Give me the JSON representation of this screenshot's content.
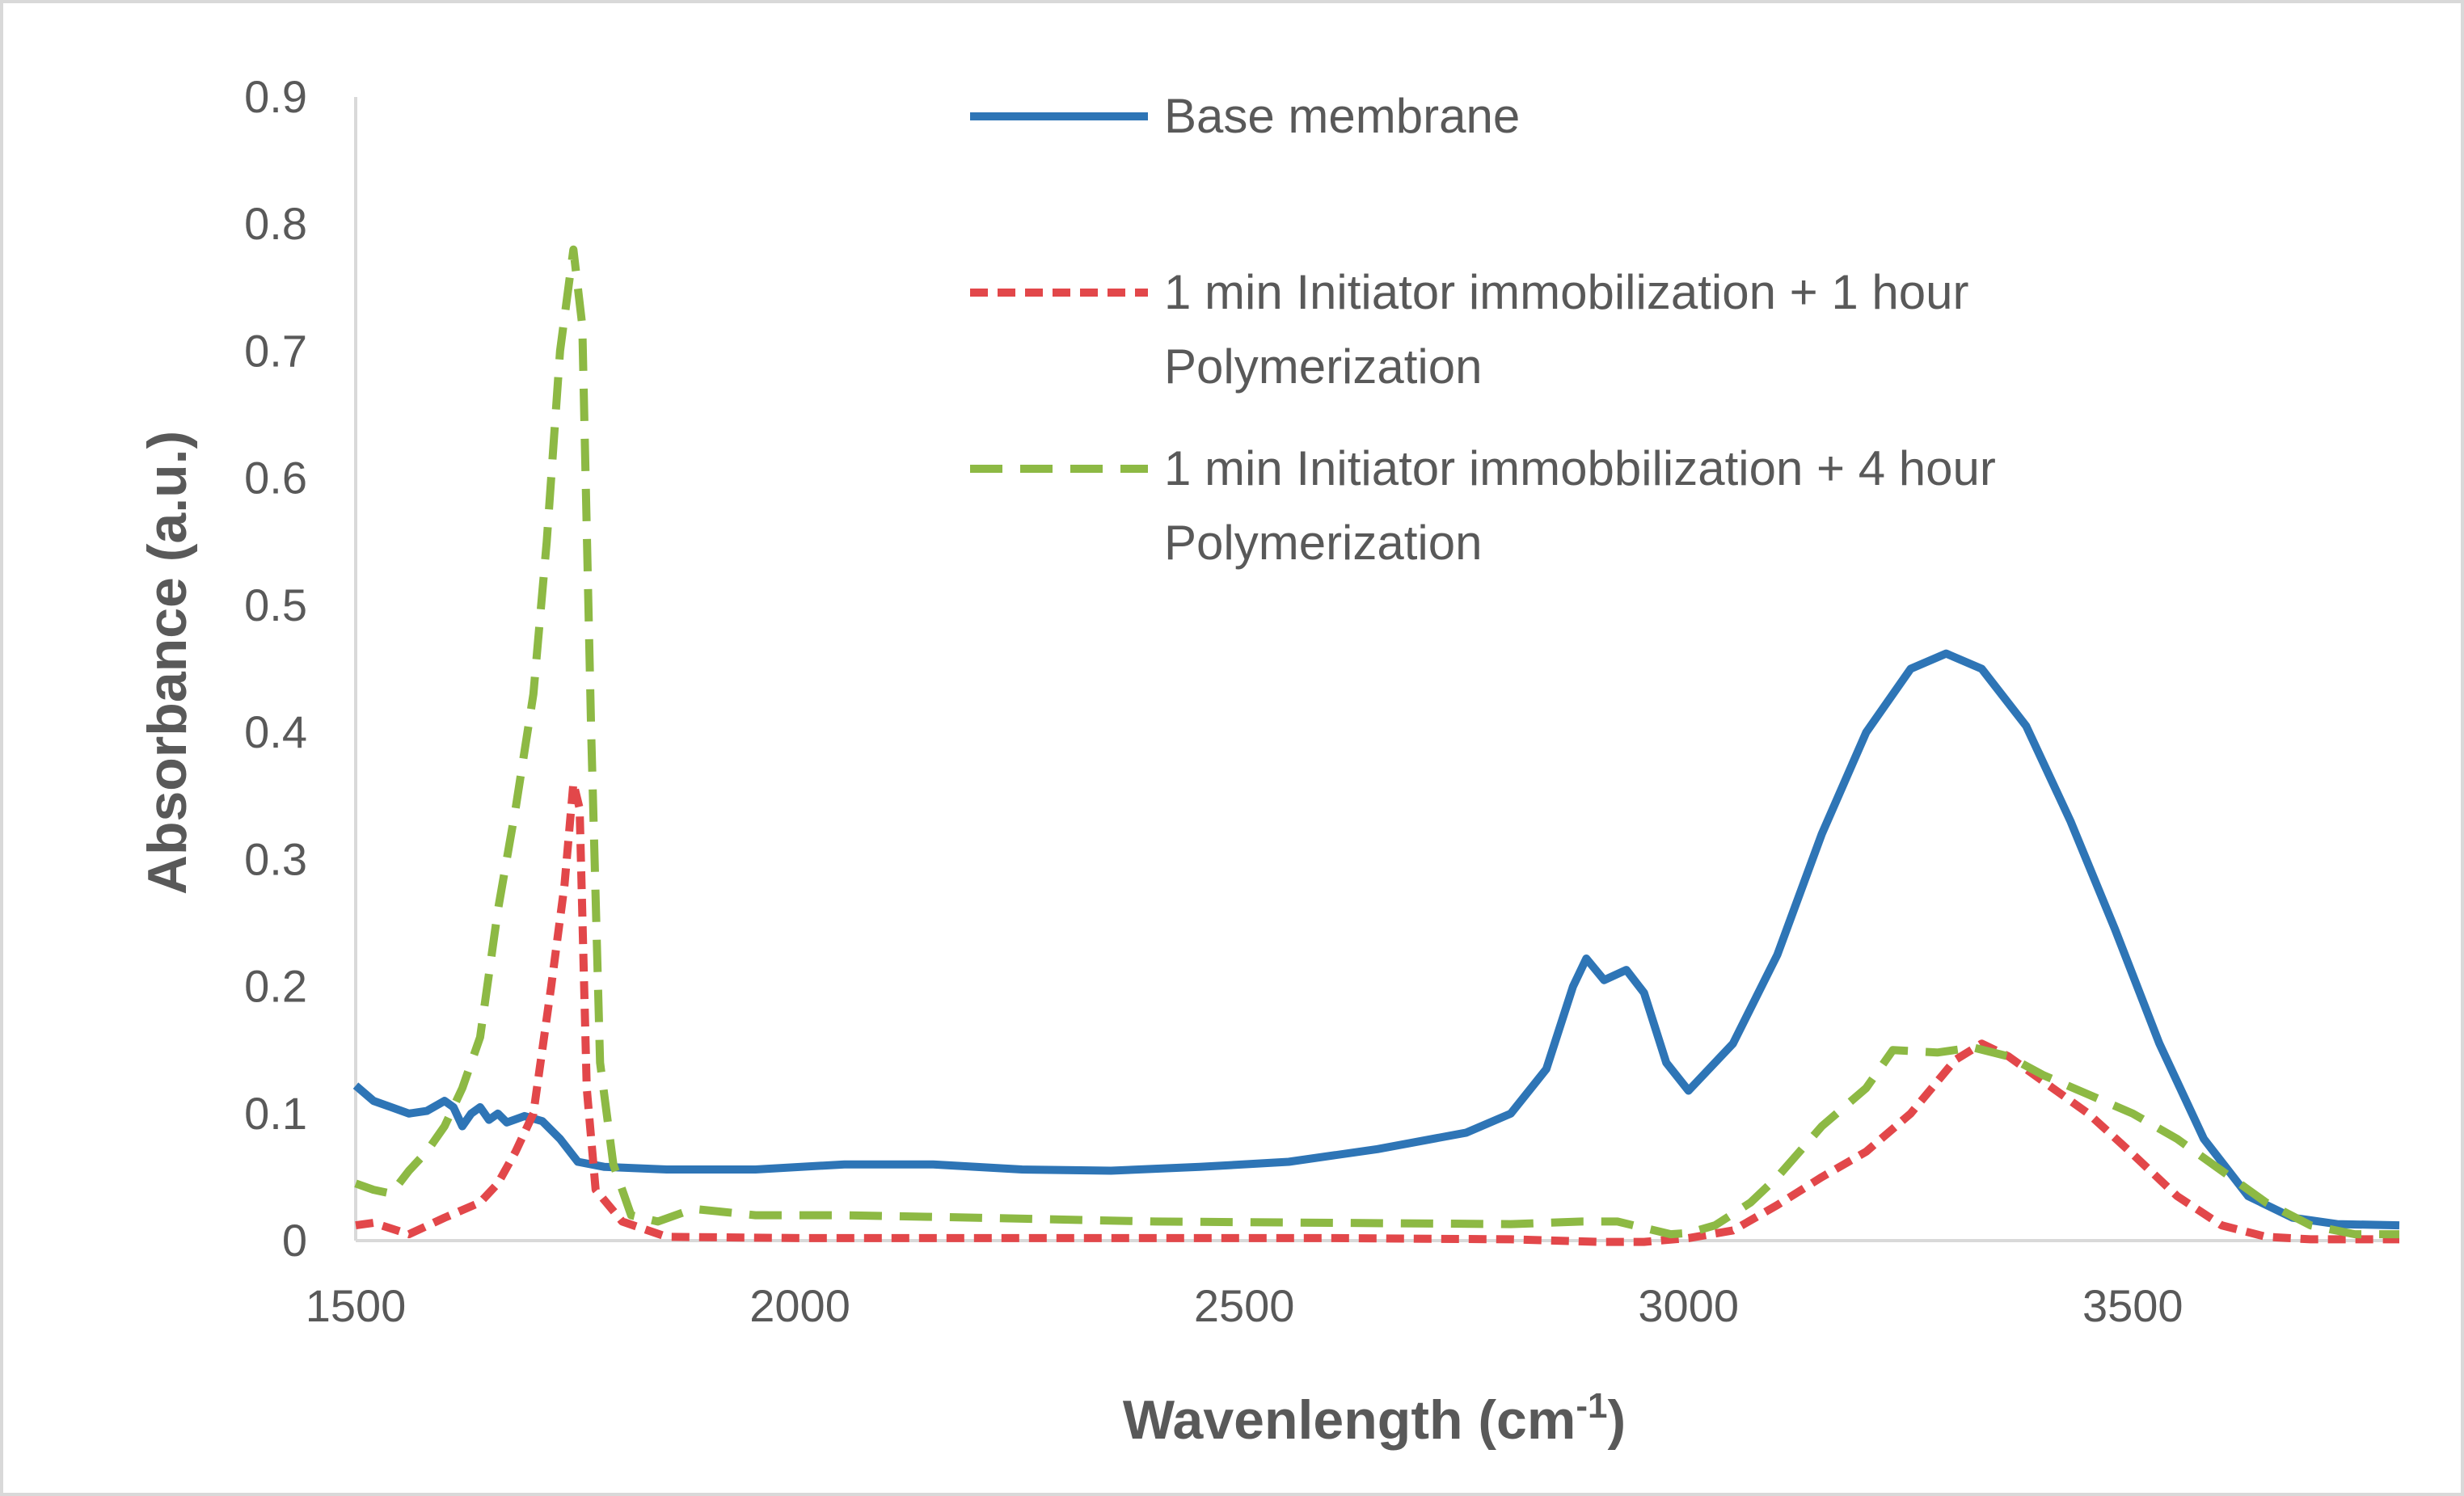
{
  "chart_data": {
    "type": "line",
    "title": "",
    "xlabel": "Wavenlength (cm",
    "xlabel_sup": "-1",
    "xlabel_end": ")",
    "ylabel": "Absorbance (a.u.)",
    "xlim": [
      1500,
      3800
    ],
    "ylim": [
      0,
      0.9
    ],
    "xticks": [
      1500,
      2000,
      2500,
      3000,
      3500
    ],
    "xtick_labels": [
      "1500",
      "2000",
      "2500",
      "3000",
      "3500"
    ],
    "yticks": [
      0,
      0.1,
      0.2,
      0.3,
      0.4,
      0.5,
      0.6,
      0.7,
      0.8,
      0.9
    ],
    "ytick_labels": [
      "0",
      "0.1",
      "0.2",
      "0.3",
      "0.4",
      "0.5",
      "0.6",
      "0.7",
      "0.8",
      "0.9"
    ],
    "grid": false,
    "legend_position": "top-right",
    "series": [
      {
        "name": "Base membrane",
        "legend_lines": [
          "Base membrane"
        ],
        "color": "#2E75B6",
        "dash": "solid",
        "points": [
          [
            1500,
            0.122
          ],
          [
            1520,
            0.11
          ],
          [
            1540,
            0.105
          ],
          [
            1560,
            0.1
          ],
          [
            1580,
            0.102
          ],
          [
            1600,
            0.11
          ],
          [
            1610,
            0.105
          ],
          [
            1620,
            0.09
          ],
          [
            1630,
            0.1
          ],
          [
            1640,
            0.105
          ],
          [
            1650,
            0.095
          ],
          [
            1660,
            0.1
          ],
          [
            1670,
            0.093
          ],
          [
            1690,
            0.098
          ],
          [
            1710,
            0.094
          ],
          [
            1730,
            0.08
          ],
          [
            1750,
            0.062
          ],
          [
            1780,
            0.058
          ],
          [
            1850,
            0.056
          ],
          [
            1950,
            0.056
          ],
          [
            2050,
            0.06
          ],
          [
            2150,
            0.06
          ],
          [
            2250,
            0.056
          ],
          [
            2350,
            0.055
          ],
          [
            2450,
            0.058
          ],
          [
            2550,
            0.062
          ],
          [
            2650,
            0.072
          ],
          [
            2750,
            0.085
          ],
          [
            2800,
            0.1
          ],
          [
            2840,
            0.135
          ],
          [
            2870,
            0.2
          ],
          [
            2885,
            0.222
          ],
          [
            2905,
            0.205
          ],
          [
            2930,
            0.213
          ],
          [
            2950,
            0.195
          ],
          [
            2975,
            0.14
          ],
          [
            3000,
            0.118
          ],
          [
            3050,
            0.155
          ],
          [
            3100,
            0.225
          ],
          [
            3150,
            0.32
          ],
          [
            3200,
            0.4
          ],
          [
            3250,
            0.45
          ],
          [
            3290,
            0.462
          ],
          [
            3330,
            0.45
          ],
          [
            3380,
            0.405
          ],
          [
            3430,
            0.33
          ],
          [
            3480,
            0.245
          ],
          [
            3530,
            0.155
          ],
          [
            3580,
            0.08
          ],
          [
            3630,
            0.035
          ],
          [
            3680,
            0.018
          ],
          [
            3730,
            0.013
          ],
          [
            3800,
            0.012
          ]
        ]
      },
      {
        "name": "1 min Initiator immobilization + 1 hour Polymerization",
        "legend_lines": [
          "1 min Initiator immobilization + 1 hour",
          "Polymerization"
        ],
        "color": "#E2474A",
        "dash": "short",
        "points": [
          [
            1500,
            0.012
          ],
          [
            1520,
            0.014
          ],
          [
            1560,
            0.005
          ],
          [
            1600,
            0.018
          ],
          [
            1640,
            0.03
          ],
          [
            1660,
            0.045
          ],
          [
            1680,
            0.07
          ],
          [
            1700,
            0.1
          ],
          [
            1720,
            0.2
          ],
          [
            1735,
            0.28
          ],
          [
            1745,
            0.36
          ],
          [
            1752,
            0.34
          ],
          [
            1760,
            0.12
          ],
          [
            1770,
            0.04
          ],
          [
            1800,
            0.015
          ],
          [
            1850,
            0.003
          ],
          [
            2000,
            0.002
          ],
          [
            2300,
            0.002
          ],
          [
            2600,
            0.002
          ],
          [
            2800,
            0.001
          ],
          [
            2900,
            -0.001
          ],
          [
            2950,
            -0.001
          ],
          [
            3000,
            0.002
          ],
          [
            3050,
            0.008
          ],
          [
            3100,
            0.028
          ],
          [
            3150,
            0.05
          ],
          [
            3200,
            0.07
          ],
          [
            3250,
            0.1
          ],
          [
            3300,
            0.142
          ],
          [
            3330,
            0.155
          ],
          [
            3360,
            0.145
          ],
          [
            3400,
            0.125
          ],
          [
            3450,
            0.1
          ],
          [
            3500,
            0.068
          ],
          [
            3550,
            0.035
          ],
          [
            3600,
            0.012
          ],
          [
            3650,
            0.003
          ],
          [
            3700,
            0.001
          ],
          [
            3800,
            0.001
          ]
        ]
      },
      {
        "name": "1 min Initiator immobbilization + 4 hour Polymerization",
        "legend_lines": [
          "1 min Initiator immobbilization + 4 hour",
          "Polymerization"
        ],
        "color": "#8DB944",
        "dash": "long",
        "points": [
          [
            1500,
            0.045
          ],
          [
            1520,
            0.04
          ],
          [
            1540,
            0.037
          ],
          [
            1560,
            0.055
          ],
          [
            1580,
            0.07
          ],
          [
            1600,
            0.09
          ],
          [
            1620,
            0.12
          ],
          [
            1640,
            0.16
          ],
          [
            1660,
            0.26
          ],
          [
            1680,
            0.34
          ],
          [
            1700,
            0.43
          ],
          [
            1715,
            0.55
          ],
          [
            1730,
            0.7
          ],
          [
            1745,
            0.78
          ],
          [
            1755,
            0.72
          ],
          [
            1765,
            0.4
          ],
          [
            1775,
            0.14
          ],
          [
            1790,
            0.06
          ],
          [
            1810,
            0.02
          ],
          [
            1840,
            0.015
          ],
          [
            1880,
            0.025
          ],
          [
            1950,
            0.02
          ],
          [
            2050,
            0.02
          ],
          [
            2200,
            0.018
          ],
          [
            2400,
            0.015
          ],
          [
            2600,
            0.014
          ],
          [
            2800,
            0.013
          ],
          [
            2880,
            0.015
          ],
          [
            2920,
            0.015
          ],
          [
            2950,
            0.01
          ],
          [
            2980,
            0.005
          ],
          [
            3000,
            0.006
          ],
          [
            3030,
            0.012
          ],
          [
            3070,
            0.03
          ],
          [
            3100,
            0.05
          ],
          [
            3150,
            0.09
          ],
          [
            3200,
            0.12
          ],
          [
            3230,
            0.15
          ],
          [
            3280,
            0.148
          ],
          [
            3320,
            0.152
          ],
          [
            3360,
            0.145
          ],
          [
            3400,
            0.13
          ],
          [
            3450,
            0.115
          ],
          [
            3500,
            0.1
          ],
          [
            3550,
            0.08
          ],
          [
            3600,
            0.055
          ],
          [
            3650,
            0.03
          ],
          [
            3700,
            0.012
          ],
          [
            3750,
            0.005
          ],
          [
            3800,
            0.005
          ]
        ]
      }
    ]
  }
}
